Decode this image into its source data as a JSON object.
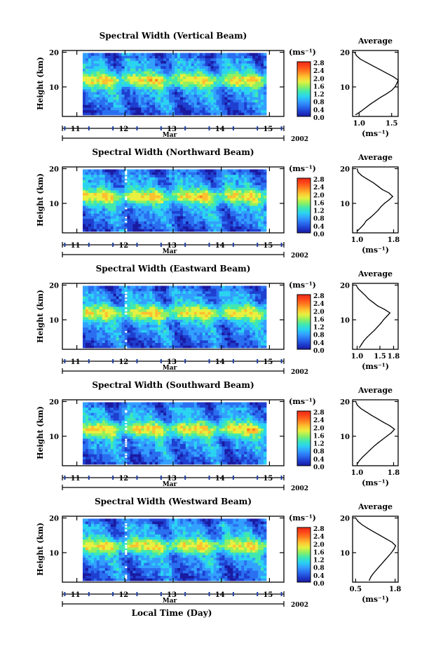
{
  "figure": {
    "xlabel": "Local Time (Day)",
    "month": "Mar",
    "year": "2002",
    "x_ticks": [
      "11",
      "12",
      "13",
      "14",
      "15"
    ],
    "y_label": "Height (km)",
    "y_ticks": [
      "20",
      "10"
    ],
    "avg_title": "Average",
    "unit_label": "(ms⁻¹)",
    "colorbar_ticks": [
      "2.8",
      "2.4",
      "2.0",
      "1.6",
      "1.2",
      "0.8",
      "0.4",
      "0.0"
    ],
    "colormap": [
      "#1a1aa0",
      "#1f3fd0",
      "#2a6ff0",
      "#33a0ff",
      "#2ad4f0",
      "#40e8b0",
      "#90f060",
      "#e8f040",
      "#ffc030",
      "#ff8020",
      "#ff4a18",
      "#e82818"
    ]
  },
  "chart_data": [
    {
      "type": "heatmap",
      "title": "Spectral Width (Vertical Beam)",
      "ylabel": "Height (km)",
      "xlabel": "Local Time (Day)",
      "xlim": [
        10.7,
        15.3
      ],
      "ylim": [
        1.5,
        20.5
      ],
      "clim": [
        0.0,
        2.8
      ],
      "unit": "ms⁻¹",
      "avg_profile": {
        "xlim": [
          0.9,
          1.6
        ],
        "x_ticks": [
          "1.0",
          "1.5"
        ],
        "xlabel": "(ms⁻¹)",
        "heights": [
          2,
          3,
          4,
          5,
          6,
          7,
          8,
          9,
          10,
          11,
          12,
          13,
          14,
          15,
          16,
          17,
          18,
          19,
          20
        ],
        "values": [
          0.95,
          1.03,
          1.1,
          1.17,
          1.25,
          1.33,
          1.42,
          1.5,
          1.55,
          1.58,
          1.6,
          1.52,
          1.42,
          1.32,
          1.22,
          1.12,
          1.02,
          0.96,
          0.93
        ]
      }
    },
    {
      "type": "heatmap",
      "title": "Spectral Width (Northward Beam)",
      "ylabel": "Height (km)",
      "xlabel": "Local Time (Day)",
      "xlim": [
        10.7,
        15.3
      ],
      "ylim": [
        1.5,
        20.5
      ],
      "clim": [
        0.0,
        2.8
      ],
      "unit": "ms⁻¹",
      "avg_profile": {
        "xlim": [
          0.9,
          1.9
        ],
        "x_ticks": [
          "1.0",
          "1.8"
        ],
        "xlabel": "(ms⁻¹)",
        "heights": [
          2,
          3,
          4,
          5,
          6,
          7,
          8,
          9,
          10,
          11,
          12,
          13,
          14,
          15,
          16,
          17,
          18,
          19,
          20
        ],
        "values": [
          1.0,
          1.08,
          1.15,
          1.2,
          1.3,
          1.38,
          1.46,
          1.52,
          1.6,
          1.7,
          1.78,
          1.7,
          1.55,
          1.45,
          1.35,
          1.22,
          1.1,
          1.02,
          1.0
        ]
      }
    },
    {
      "type": "heatmap",
      "title": "Spectral Width (Eastward Beam)",
      "ylabel": "Height (km)",
      "xlabel": "Local Time (Day)",
      "xlim": [
        10.7,
        15.3
      ],
      "ylim": [
        1.5,
        20.5
      ],
      "clim": [
        0.0,
        2.8
      ],
      "unit": "ms⁻¹",
      "avg_profile": {
        "xlim": [
          0.9,
          1.9
        ],
        "x_ticks": [
          "1.0",
          "1.5",
          "1.8"
        ],
        "xlabel": "(ms⁻¹)",
        "heights": [
          2,
          3,
          4,
          5,
          6,
          7,
          8,
          9,
          10,
          11,
          12,
          13,
          14,
          15,
          16,
          17,
          18,
          19,
          20
        ],
        "values": [
          1.05,
          1.1,
          1.15,
          1.22,
          1.3,
          1.38,
          1.45,
          1.52,
          1.58,
          1.65,
          1.72,
          1.6,
          1.45,
          1.35,
          1.25,
          1.18,
          1.1,
          1.02,
          0.98
        ]
      }
    },
    {
      "type": "heatmap",
      "title": "Spectral Width (Southward Beam)",
      "ylabel": "Height (km)",
      "xlabel": "Local Time (Day)",
      "xlim": [
        10.7,
        15.3
      ],
      "ylim": [
        1.5,
        20.5
      ],
      "clim": [
        0.0,
        2.8
      ],
      "unit": "ms⁻¹",
      "avg_profile": {
        "xlim": [
          0.9,
          1.9
        ],
        "x_ticks": [
          "1.0",
          "1.8"
        ],
        "xlabel": "(ms⁻¹)",
        "heights": [
          2,
          3,
          4,
          5,
          6,
          7,
          8,
          9,
          10,
          11,
          12,
          13,
          14,
          15,
          16,
          17,
          18,
          19,
          20
        ],
        "values": [
          1.0,
          1.05,
          1.12,
          1.2,
          1.28,
          1.36,
          1.45,
          1.55,
          1.65,
          1.75,
          1.82,
          1.72,
          1.58,
          1.45,
          1.32,
          1.2,
          1.08,
          1.0,
          0.97
        ]
      }
    },
    {
      "type": "heatmap",
      "title": "Spectral Width (Westward Beam)",
      "ylabel": "Height (km)",
      "xlabel": "Local Time (Day)",
      "xlim": [
        10.7,
        15.3
      ],
      "ylim": [
        1.5,
        20.5
      ],
      "clim": [
        0.0,
        2.8
      ],
      "unit": "ms⁻¹",
      "avg_profile": {
        "xlim": [
          0.4,
          1.9
        ],
        "x_ticks": [
          "0.5",
          "1.8"
        ],
        "xlabel": "(ms⁻¹)",
        "heights": [
          2,
          3,
          4,
          5,
          6,
          7,
          8,
          9,
          10,
          11,
          12,
          13,
          14,
          15,
          16,
          17,
          18,
          19,
          20
        ],
        "values": [
          0.95,
          1.0,
          1.08,
          1.18,
          1.28,
          1.38,
          1.48,
          1.58,
          1.68,
          1.76,
          1.82,
          1.7,
          1.5,
          1.3,
          1.1,
          0.9,
          0.72,
          0.58,
          0.5
        ]
      }
    }
  ]
}
